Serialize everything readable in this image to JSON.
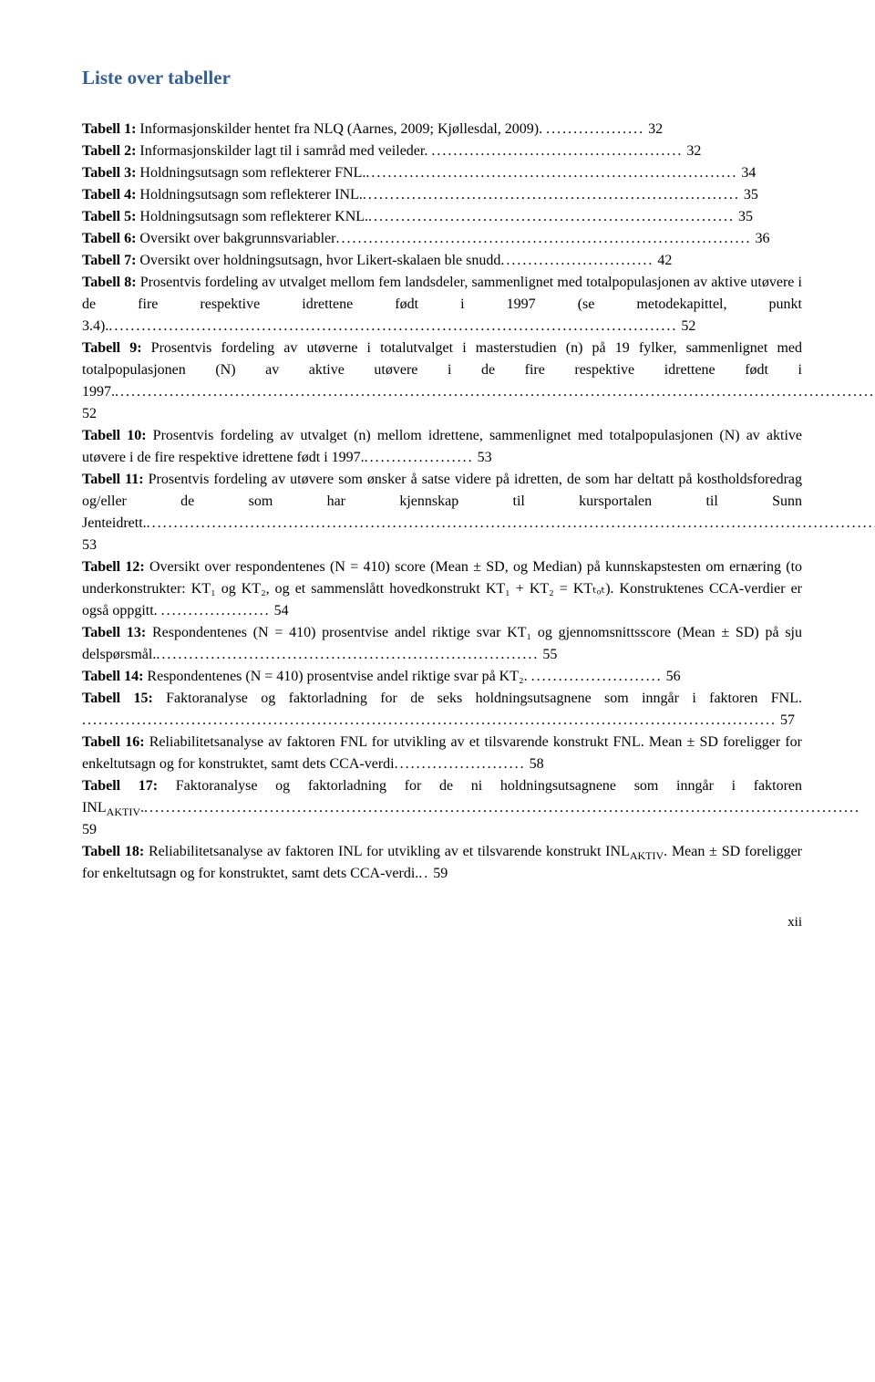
{
  "title": "Liste over tabeller",
  "entries": [
    {
      "label": "Tabell 1:",
      "text": " Informasjonskilder hentet fra NLQ (Aarnes, 2009; Kjøllesdal, 2009). ",
      "dots": "..................",
      "page": " 32"
    },
    {
      "label": "Tabell 2:",
      "text": " Informasjonskilder lagt til i samråd med veileder. ",
      "dots": "..............................................",
      "page": " 32"
    },
    {
      "label": "Tabell 3:",
      "text": " Holdningsutsagn som reflekterer FNL.",
      "dots": "....................................................................",
      "page": " 34"
    },
    {
      "label": "Tabell 4:",
      "text": " Holdningsutsagn som reflekterer INL.",
      "dots": ".....................................................................",
      "page": " 35"
    },
    {
      "label": "Tabell 5:",
      "text": " Holdningsutsagn som reflekterer KNL.",
      "dots": "...................................................................",
      "page": " 35"
    },
    {
      "label": "Tabell 6:",
      "text": " Oversikt over bakgrunnsvariabler",
      "dots": "............................................................................",
      "page": " 36"
    },
    {
      "label": "Tabell 7:",
      "text": " Oversikt over holdningsutsagn, hvor Likert-skalaen ble snudd",
      "dots": "............................",
      "page": " 42"
    },
    {
      "label": "Tabell 8:",
      "text": " Prosentvis fordeling av utvalget mellom fem landsdeler, sammenlignet med totalpopulasjonen av aktive utøvere i de fire respektive idrettene født i 1997 (se metodekapittel, punkt 3.4).",
      "dots": "........................................................................................................",
      "page": " 52"
    },
    {
      "label": "Tabell 9:",
      "text": " Prosentvis fordeling av utøverne i totalutvalget i masterstudien (n) på 19 fylker, sammenlignet med totalpopulasjonen (N) av aktive utøvere i de fire respektive idrettene født i 1997.",
      "dots": "................................................................................................................................................",
      "page": " 52"
    },
    {
      "label": "Tabell 10:",
      "text": " Prosentvis fordeling av utvalget (n) mellom idrettene, sammenlignet med totalpopulasjonen (N) av aktive utøvere i de fire respektive idrettene født i 1997.",
      "dots": "....................",
      "page": " 53"
    },
    {
      "label": "Tabell 11:",
      "text": " Prosentvis fordeling av utøvere som ønsker å satse videre på idretten, de som har deltatt på kostholdsforedrag og/eller de som har kjennskap til kursportalen til Sunn Jenteidrett.",
      "dots": "......................................................................................................................................",
      "page": " 53"
    },
    {
      "label": "Tabell 12:",
      "text": " Oversikt over respondentenes (N = 410) score (Mean ± SD, og Median) på kunnskapstesten om ernæring (to underkonstrukter: KT₁ og KT₂, og et sammenslått hovedkonstrukt KT₁ + KT₂ = KTₜₒₜ). Konstruktenes CCA-verdier er også oppgitt. ",
      "dots": "....................",
      "page": " 54"
    },
    {
      "label": "Tabell 13:",
      "text": " Respondentenes (N = 410) prosentvise andel riktige svar KT₁ og gjennomsnittsscore (Mean ± SD) på sju delspørsmål.",
      "dots": "......................................................................",
      "page": " 55"
    },
    {
      "label": "Tabell 14:",
      "text": " Respondentenes (N = 410) prosentvise andel riktige svar på KT₂. ",
      "dots": "........................",
      "page": " 56"
    },
    {
      "label": "Tabell 15:",
      "text": " Faktoranalyse og faktorladning for de seks holdningsutsagnene som inngår i faktoren FNL. ",
      "dots": "...............................................................................................................................",
      "page": " 57"
    },
    {
      "label": "Tabell 16:",
      "text": " Reliabilitetsanalyse av faktoren FNL for utvikling av et tilsvarende konstrukt FNL. Mean ± SD foreligger for enkeltutsagn og for konstruktet, samt dets CCA-verdi",
      "dots": "........................",
      "page": " 58"
    },
    {
      "label": "Tabell 17:",
      "text": " Faktoranalyse og faktorladning for de ni holdningsutsagnene som inngår i faktoren INLAKTIV.",
      "dots": "...................................................................................................................................",
      "page": " 59",
      "sub": true
    },
    {
      "label": "Tabell 18:",
      "text": " Reliabilitetsanalyse av faktoren INL for utvikling av et tilsvarende konstrukt INLAKTIV. Mean ± SD foreligger for enkeltutsagn og for konstruktet, samt dets CCA-verdi.",
      "dots": "..",
      "page": " 59",
      "sub": true
    }
  ],
  "pageNumber": "xii"
}
